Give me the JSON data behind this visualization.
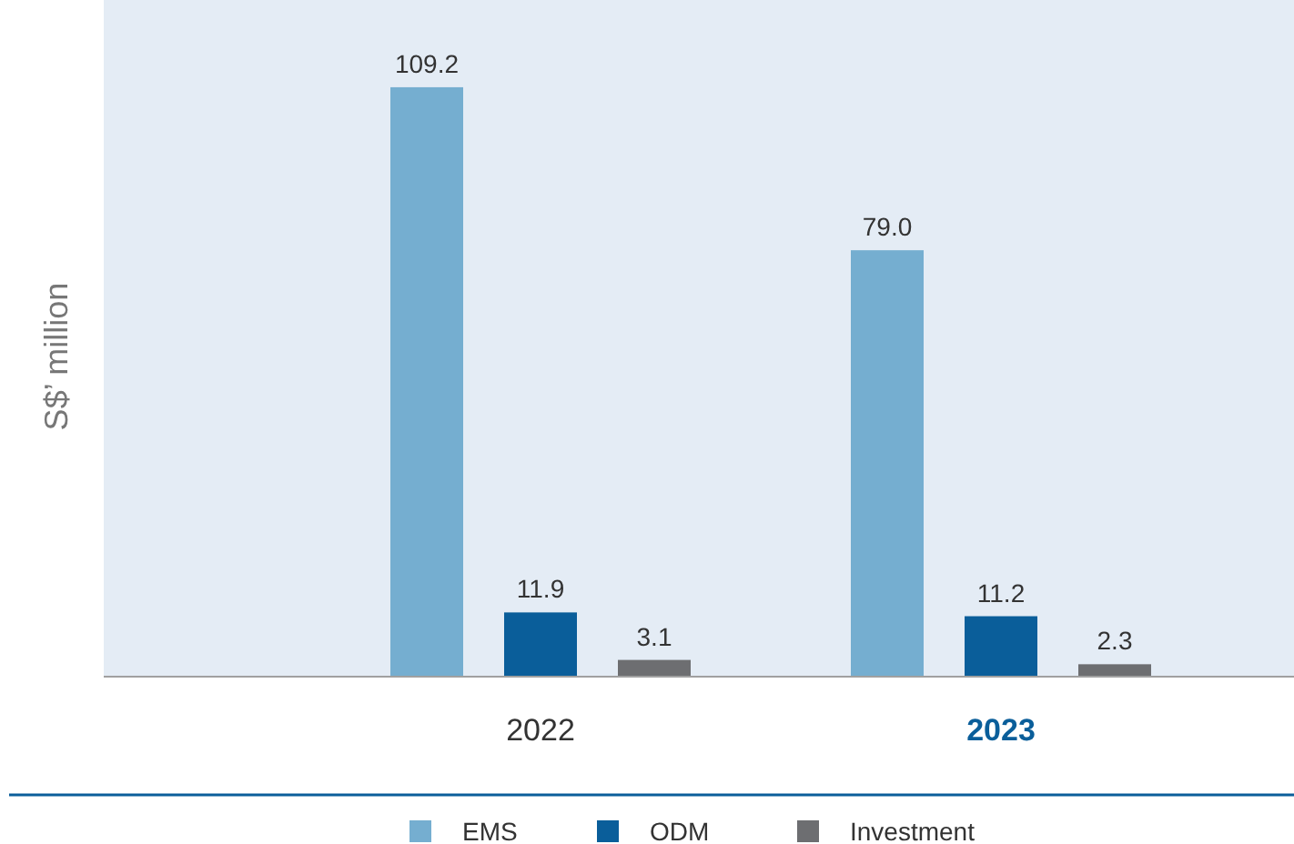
{
  "chart_data": {
    "type": "bar",
    "ylabel": "S$’ million",
    "categories": [
      "2022",
      "2023"
    ],
    "series": [
      {
        "name": "EMS",
        "color": "#75aed0",
        "values": [
          109.2,
          79.0
        ],
        "value_labels": [
          "109.2",
          "79.0"
        ]
      },
      {
        "name": "ODM",
        "color": "#0a5e9a",
        "values": [
          11.9,
          11.2
        ],
        "value_labels": [
          "11.9",
          "11.2"
        ]
      },
      {
        "name": "Investment",
        "color": "#6d6e71",
        "values": [
          3.1,
          2.3
        ],
        "value_labels": [
          "3.1",
          "2.3"
        ]
      }
    ],
    "legend": "bottom"
  }
}
